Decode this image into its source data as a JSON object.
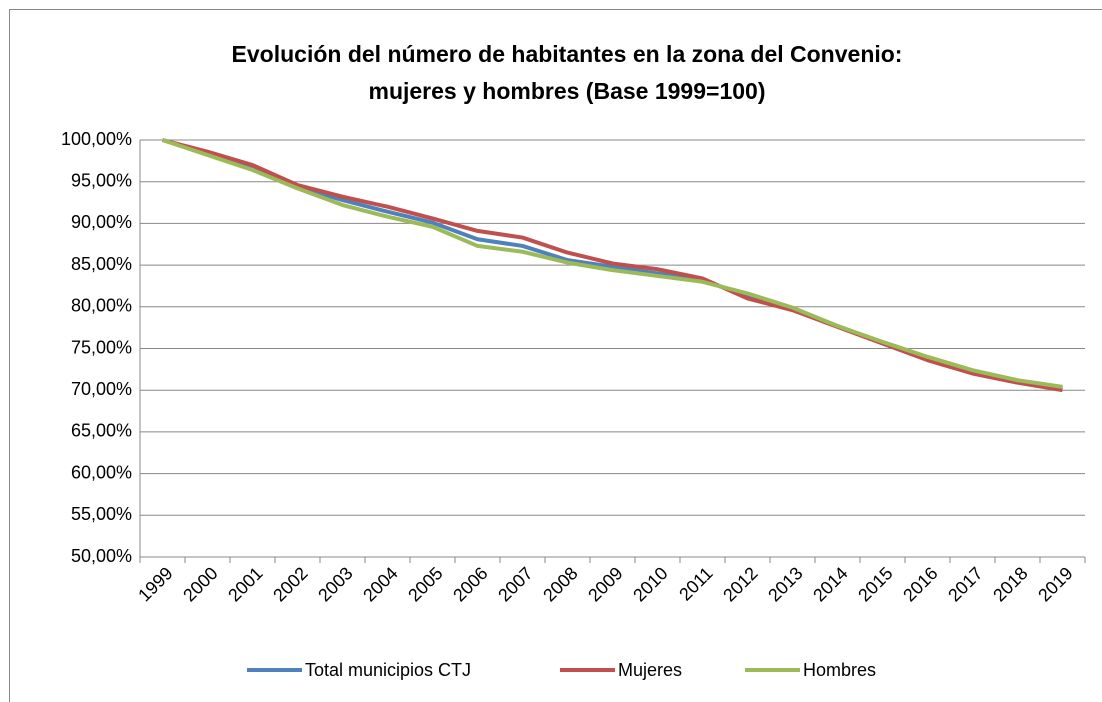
{
  "chart_data": {
    "type": "line",
    "title": [
      "Evolución del número de habitantes en la zona del Convenio:",
      "mujeres y hombres (Base 1999=100)"
    ],
    "categories": [
      "1999",
      "2000",
      "2001",
      "2002",
      "2003",
      "2004",
      "2005",
      "2006",
      "2007",
      "2008",
      "2009",
      "2010",
      "2011",
      "2012",
      "2013",
      "2014",
      "2015",
      "2016",
      "2017",
      "2018",
      "2019"
    ],
    "series": [
      {
        "name": "Total municipios CTJ",
        "color": "#4f81bd",
        "values": [
          100,
          98.3,
          96.7,
          94.4,
          92.8,
          91.4,
          90.1,
          88.1,
          87.3,
          85.6,
          84.8,
          84.0,
          83.2,
          81.3,
          79.8,
          77.7,
          75.7,
          73.9,
          72.3,
          71.0,
          70.2
        ]
      },
      {
        "name": "Mujeres",
        "color": "#c0504d",
        "values": [
          100,
          98.6,
          97.0,
          94.6,
          93.2,
          92.0,
          90.6,
          89.1,
          88.3,
          86.5,
          85.2,
          84.5,
          83.4,
          81.0,
          79.6,
          77.6,
          75.6,
          73.6,
          72.0,
          70.9,
          70.0
        ]
      },
      {
        "name": "Hombres",
        "color": "#9bbb59",
        "values": [
          100,
          98.2,
          96.4,
          94.2,
          92.2,
          90.8,
          89.6,
          87.3,
          86.6,
          85.3,
          84.4,
          83.7,
          83.0,
          81.6,
          79.9,
          77.7,
          75.8,
          74.0,
          72.4,
          71.2,
          70.4
        ]
      }
    ],
    "ylim": [
      50,
      100
    ],
    "yticks": [
      {
        "value": 50,
        "label": "50,00%"
      },
      {
        "value": 55,
        "label": "55,00%"
      },
      {
        "value": 60,
        "label": "60,00%"
      },
      {
        "value": 65,
        "label": "65,00%"
      },
      {
        "value": 70,
        "label": "70,00%"
      },
      {
        "value": 75,
        "label": "75,00%"
      },
      {
        "value": 80,
        "label": "80,00%"
      },
      {
        "value": 85,
        "label": "85,00%"
      },
      {
        "value": 90,
        "label": "90,00%"
      },
      {
        "value": 95,
        "label": "95,00%"
      },
      {
        "value": 100,
        "label": "100,00%"
      }
    ],
    "grid": true,
    "legend": "bottom"
  }
}
